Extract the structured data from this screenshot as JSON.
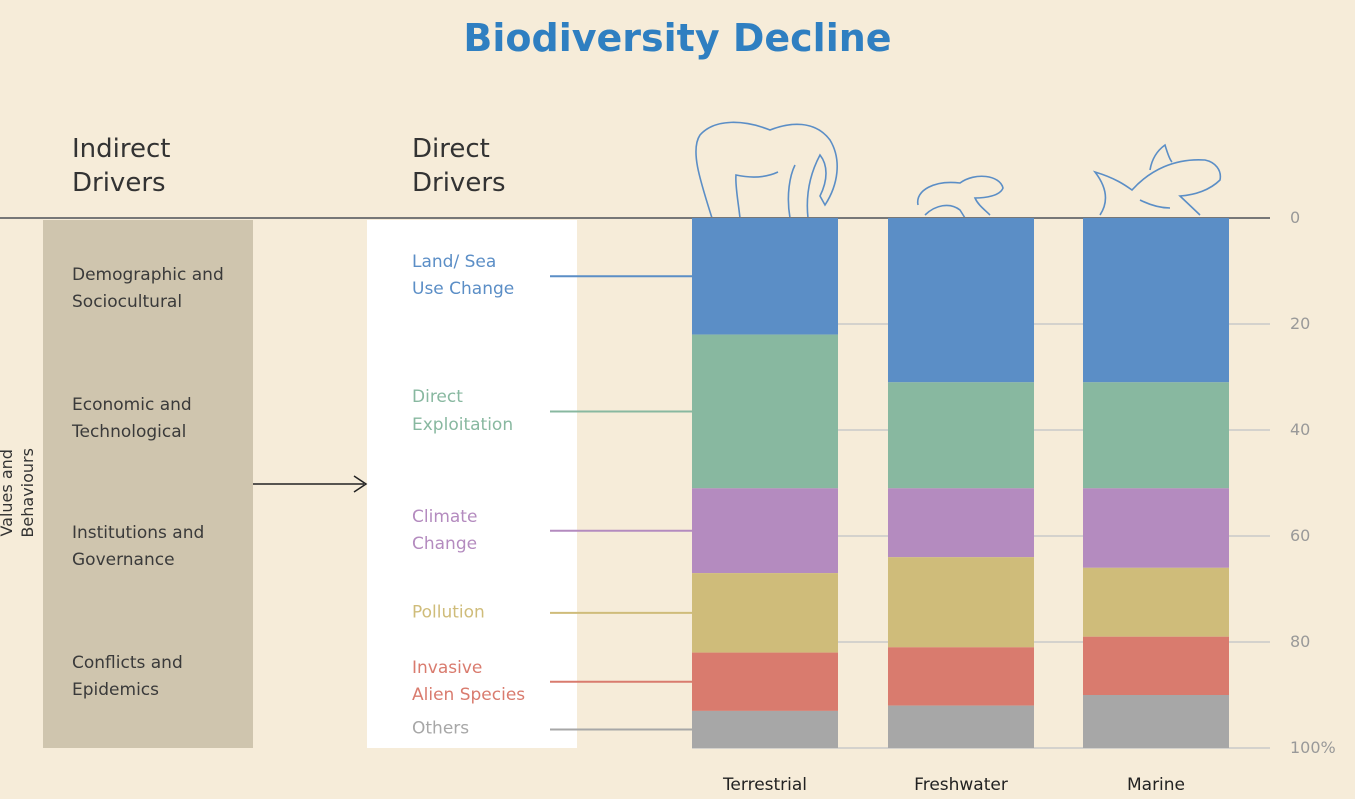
{
  "chart_data": {
    "type": "bar",
    "stacked": true,
    "title": "Biodiversity Decline",
    "indirect_header": "Indirect\nDrivers",
    "direct_header": "Direct\nDrivers",
    "side_label": "Values and Behaviours",
    "indirect_drivers": [
      "Demographic and\nSociocultural",
      "Economic and\nTechnological",
      "Institutions and\nGovernance",
      "Conflicts and\nEpidemics"
    ],
    "categories": [
      "Terrestrial",
      "Freshwater",
      "Marine"
    ],
    "series": [
      {
        "name": "Land/ Sea\nUse Change",
        "color": "#5b8ec6",
        "values": [
          22,
          31,
          31
        ]
      },
      {
        "name": "Direct\nExploitation",
        "color": "#88b8a0",
        "values": [
          29,
          20,
          20
        ]
      },
      {
        "name": "Climate\nChange",
        "color": "#b48bbf",
        "values": [
          16,
          13,
          15
        ]
      },
      {
        "name": "Pollution",
        "color": "#cfbc7a",
        "values": [
          15,
          17,
          13
        ]
      },
      {
        "name": "Invasive\nAlien Species",
        "color": "#d97b6e",
        "values": [
          11,
          11,
          11
        ]
      },
      {
        "name": "Others",
        "color": "#a7a7a7",
        "values": [
          7,
          8,
          10
        ]
      }
    ],
    "ylim": [
      0,
      100
    ],
    "y_inverted": true,
    "yticks": [
      0,
      20,
      40,
      60,
      80,
      {
        "value": 100,
        "label": "100%"
      }
    ]
  }
}
